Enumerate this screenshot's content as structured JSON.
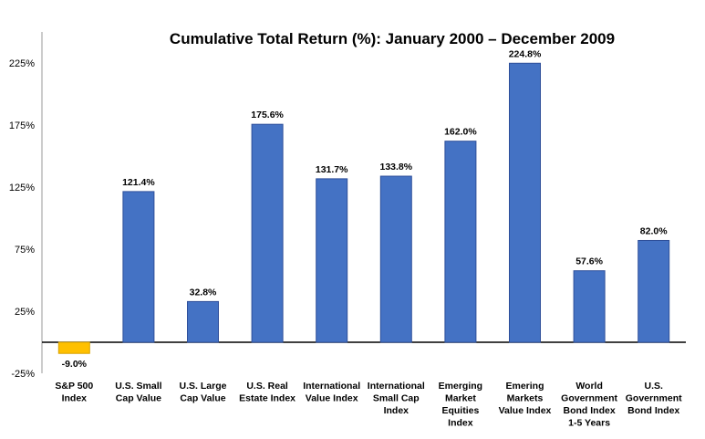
{
  "chart_data": {
    "type": "bar",
    "title": "Cumulative Total Return (%): January 2000 – December 2009",
    "xlabel": "",
    "ylabel": "",
    "ylim": [
      -25,
      250
    ],
    "yticks": [
      225,
      175,
      125,
      75,
      25,
      -25
    ],
    "ytick_labels": [
      "225%",
      "175%",
      "125%",
      "75%",
      "25%",
      "-25%"
    ],
    "grid": false,
    "categories": [
      [
        "S&P 500",
        "Index"
      ],
      [
        "U.S. Small",
        "Cap Value"
      ],
      [
        "U.S. Large",
        "Cap Value"
      ],
      [
        "U.S. Real",
        "Estate Index"
      ],
      [
        "International",
        "Value Index"
      ],
      [
        "International",
        "Small Cap",
        "Index"
      ],
      [
        "Emerging",
        "Market",
        "Equities",
        "Index"
      ],
      [
        "Emering",
        "Markets",
        "Value Index"
      ],
      [
        "World",
        "Government",
        "Bond Index",
        "1-5 Years"
      ],
      [
        "U.S.",
        "Government",
        "Bond Index"
      ]
    ],
    "values": [
      -9.0,
      121.4,
      32.8,
      175.6,
      131.7,
      133.8,
      162.0,
      224.8,
      57.6,
      82.0
    ],
    "value_labels": [
      "-9.0%",
      "121.4%",
      "32.8%",
      "175.6%",
      "131.7%",
      "133.8%",
      "162.0%",
      "224.8%",
      "57.6%",
      "82.0%"
    ],
    "colors": {
      "positive": "#4472C4",
      "positive_stroke": "#2E4F9A",
      "negative": "#FFC000",
      "negative_stroke": "#D9A300",
      "axis": "#000000"
    }
  }
}
